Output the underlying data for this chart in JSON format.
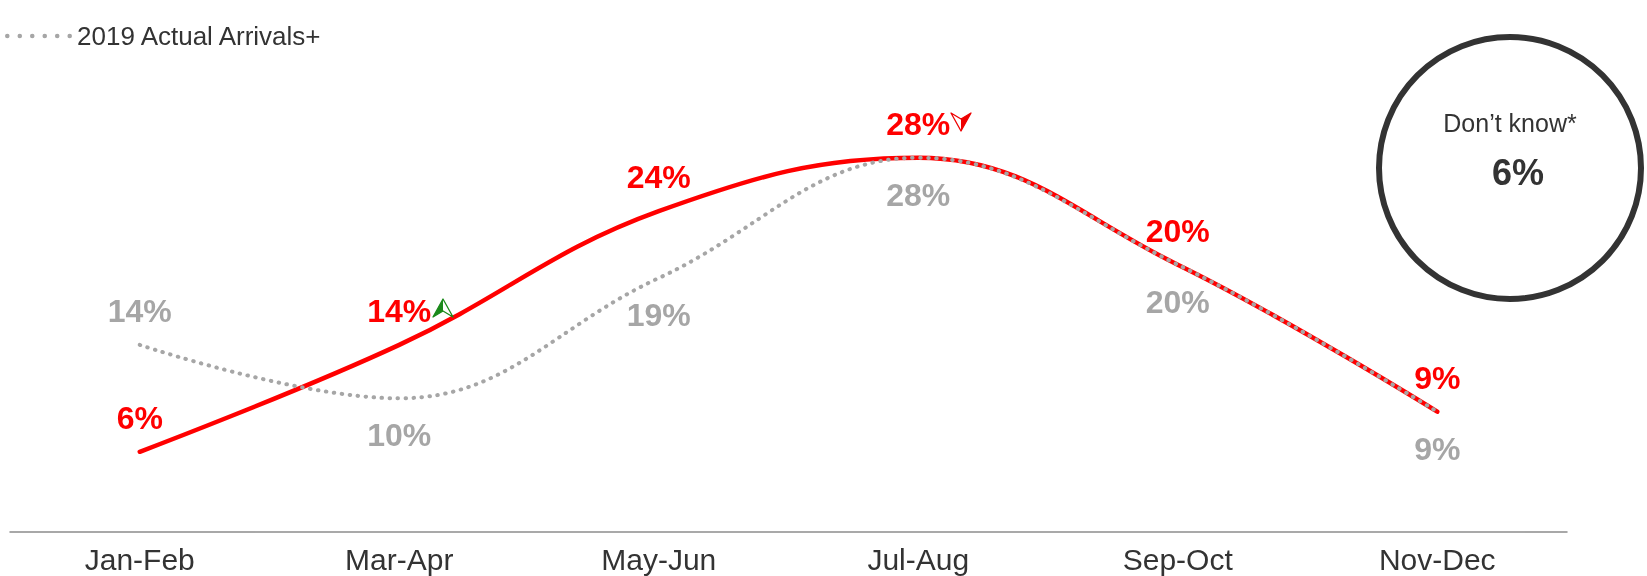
{
  "chart_data": [
    {
      "type": "line",
      "categories": [
        "Jan-Feb",
        "Mar-Apr",
        "May-Jun",
        "Jul-Aug",
        "Sep-Oct",
        "Nov-Dec"
      ],
      "series": [
        {
          "color": "#ff0000",
          "values": [
            6,
            14,
            24,
            28,
            20,
            9
          ],
          "value_labels": [
            "6%",
            "14%",
            "24%",
            "28%",
            "20%",
            "9%"
          ],
          "line_style": "solid"
        },
        {
          "name": "2019 Actual Arrivals+",
          "color": "#a6a6a6",
          "values": [
            14,
            10,
            19,
            28,
            20,
            9
          ],
          "value_labels": [
            "14%",
            "10%",
            "19%",
            "28%",
            "20%",
            "9%"
          ],
          "line_style": "dotted"
        }
      ],
      "tick_labels": "x",
      "legend": "top left",
      "marker": "none"
    },
    {
      "type": "other",
      "title": "Don’t know*",
      "annotations": [
        "6%"
      ]
    }
  ]
}
